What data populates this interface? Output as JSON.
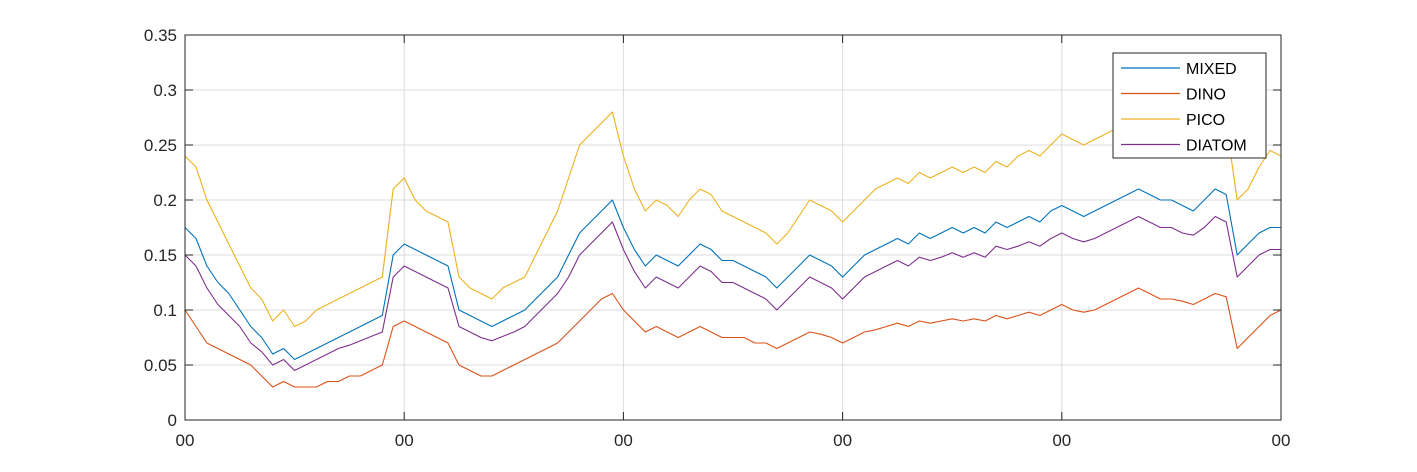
{
  "chart_data": {
    "type": "line",
    "title": "",
    "xlabel": "",
    "ylabel": "",
    "ylim": [
      0,
      0.35
    ],
    "xlim": [
      0,
      100
    ],
    "yticks": [
      0,
      0.05,
      0.1,
      0.15,
      0.2,
      0.25,
      0.3,
      0.35
    ],
    "ytick_labels": [
      "0",
      "0.05",
      "0.1",
      "0.15",
      "0.2",
      "0.25",
      "0.3",
      "0.35"
    ],
    "xticks": [
      0,
      20,
      40,
      60,
      80,
      100
    ],
    "xtick_labels": [
      "00",
      "00",
      "00",
      "00",
      "00",
      "00"
    ],
    "grid": true,
    "legend_position": "top-right",
    "series": [
      {
        "name": "MIXED",
        "color": "#0072BD",
        "x": [
          0,
          1,
          2,
          3,
          4,
          5,
          6,
          7,
          8,
          9,
          10,
          11,
          12,
          13,
          14,
          15,
          16,
          17,
          18,
          19,
          20,
          21,
          22,
          23,
          24,
          25,
          26,
          27,
          28,
          29,
          30,
          31,
          32,
          33,
          34,
          35,
          36,
          37,
          38,
          39,
          40,
          41,
          42,
          43,
          44,
          45,
          46,
          47,
          48,
          49,
          50,
          51,
          52,
          53,
          54,
          55,
          56,
          57,
          58,
          59,
          60,
          61,
          62,
          63,
          64,
          65,
          66,
          67,
          68,
          69,
          70,
          71,
          72,
          73,
          74,
          75,
          76,
          77,
          78,
          79,
          80,
          81,
          82,
          83,
          84,
          85,
          86,
          87,
          88,
          89,
          90,
          91,
          92,
          93,
          94,
          95,
          96,
          97,
          98,
          99,
          100
        ],
        "values": [
          0.175,
          0.165,
          0.14,
          0.125,
          0.115,
          0.1,
          0.085,
          0.075,
          0.06,
          0.065,
          0.055,
          0.06,
          0.065,
          0.07,
          0.075,
          0.08,
          0.085,
          0.09,
          0.095,
          0.15,
          0.16,
          0.155,
          0.15,
          0.145,
          0.14,
          0.1,
          0.095,
          0.09,
          0.085,
          0.09,
          0.095,
          0.1,
          0.11,
          0.12,
          0.13,
          0.15,
          0.17,
          0.18,
          0.19,
          0.2,
          0.175,
          0.155,
          0.14,
          0.15,
          0.145,
          0.14,
          0.15,
          0.16,
          0.155,
          0.145,
          0.145,
          0.14,
          0.135,
          0.13,
          0.12,
          0.13,
          0.14,
          0.15,
          0.145,
          0.14,
          0.13,
          0.14,
          0.15,
          0.155,
          0.16,
          0.165,
          0.16,
          0.17,
          0.165,
          0.17,
          0.175,
          0.17,
          0.175,
          0.17,
          0.18,
          0.175,
          0.18,
          0.185,
          0.18,
          0.19,
          0.195,
          0.19,
          0.185,
          0.19,
          0.195,
          0.2,
          0.205,
          0.21,
          0.205,
          0.2,
          0.2,
          0.195,
          0.19,
          0.2,
          0.21,
          0.205,
          0.15,
          0.16,
          0.17,
          0.175,
          0.175
        ]
      },
      {
        "name": "DINO",
        "color": "#D95319",
        "x": [
          0,
          1,
          2,
          3,
          4,
          5,
          6,
          7,
          8,
          9,
          10,
          11,
          12,
          13,
          14,
          15,
          16,
          17,
          18,
          19,
          20,
          21,
          22,
          23,
          24,
          25,
          26,
          27,
          28,
          29,
          30,
          31,
          32,
          33,
          34,
          35,
          36,
          37,
          38,
          39,
          40,
          41,
          42,
          43,
          44,
          45,
          46,
          47,
          48,
          49,
          50,
          51,
          52,
          53,
          54,
          55,
          56,
          57,
          58,
          59,
          60,
          61,
          62,
          63,
          64,
          65,
          66,
          67,
          68,
          69,
          70,
          71,
          72,
          73,
          74,
          75,
          76,
          77,
          78,
          79,
          80,
          81,
          82,
          83,
          84,
          85,
          86,
          87,
          88,
          89,
          90,
          91,
          92,
          93,
          94,
          95,
          96,
          97,
          98,
          99,
          100
        ],
        "values": [
          0.1,
          0.085,
          0.07,
          0.065,
          0.06,
          0.055,
          0.05,
          0.04,
          0.03,
          0.035,
          0.03,
          0.03,
          0.03,
          0.035,
          0.035,
          0.04,
          0.04,
          0.045,
          0.05,
          0.085,
          0.09,
          0.085,
          0.08,
          0.075,
          0.07,
          0.05,
          0.045,
          0.04,
          0.04,
          0.045,
          0.05,
          0.055,
          0.06,
          0.065,
          0.07,
          0.08,
          0.09,
          0.1,
          0.11,
          0.115,
          0.1,
          0.09,
          0.08,
          0.085,
          0.08,
          0.075,
          0.08,
          0.085,
          0.08,
          0.075,
          0.075,
          0.075,
          0.07,
          0.07,
          0.065,
          0.07,
          0.075,
          0.08,
          0.078,
          0.075,
          0.07,
          0.075,
          0.08,
          0.082,
          0.085,
          0.088,
          0.085,
          0.09,
          0.088,
          0.09,
          0.092,
          0.09,
          0.092,
          0.09,
          0.095,
          0.092,
          0.095,
          0.098,
          0.095,
          0.1,
          0.105,
          0.1,
          0.098,
          0.1,
          0.105,
          0.11,
          0.115,
          0.12,
          0.115,
          0.11,
          0.11,
          0.108,
          0.105,
          0.11,
          0.115,
          0.112,
          0.065,
          0.075,
          0.085,
          0.095,
          0.1
        ]
      },
      {
        "name": "PICO",
        "color": "#EDB120",
        "x": [
          0,
          1,
          2,
          3,
          4,
          5,
          6,
          7,
          8,
          9,
          10,
          11,
          12,
          13,
          14,
          15,
          16,
          17,
          18,
          19,
          20,
          21,
          22,
          23,
          24,
          25,
          26,
          27,
          28,
          29,
          30,
          31,
          32,
          33,
          34,
          35,
          36,
          37,
          38,
          39,
          40,
          41,
          42,
          43,
          44,
          45,
          46,
          47,
          48,
          49,
          50,
          51,
          52,
          53,
          54,
          55,
          56,
          57,
          58,
          59,
          60,
          61,
          62,
          63,
          64,
          65,
          66,
          67,
          68,
          69,
          70,
          71,
          72,
          73,
          74,
          75,
          76,
          77,
          78,
          79,
          80,
          81,
          82,
          83,
          84,
          85,
          86,
          87,
          88,
          89,
          90,
          91,
          92,
          93,
          94,
          95,
          96,
          97,
          98,
          99,
          100
        ],
        "values": [
          0.24,
          0.23,
          0.2,
          0.18,
          0.16,
          0.14,
          0.12,
          0.11,
          0.09,
          0.1,
          0.085,
          0.09,
          0.1,
          0.105,
          0.11,
          0.115,
          0.12,
          0.125,
          0.13,
          0.21,
          0.22,
          0.2,
          0.19,
          0.185,
          0.18,
          0.13,
          0.12,
          0.115,
          0.11,
          0.12,
          0.125,
          0.13,
          0.15,
          0.17,
          0.19,
          0.22,
          0.25,
          0.26,
          0.27,
          0.28,
          0.24,
          0.21,
          0.19,
          0.2,
          0.195,
          0.185,
          0.2,
          0.21,
          0.205,
          0.19,
          0.185,
          0.18,
          0.175,
          0.17,
          0.16,
          0.17,
          0.185,
          0.2,
          0.195,
          0.19,
          0.18,
          0.19,
          0.2,
          0.21,
          0.215,
          0.22,
          0.215,
          0.225,
          0.22,
          0.225,
          0.23,
          0.225,
          0.23,
          0.225,
          0.235,
          0.23,
          0.24,
          0.245,
          0.24,
          0.25,
          0.26,
          0.255,
          0.25,
          0.255,
          0.26,
          0.265,
          0.27,
          0.28,
          0.275,
          0.265,
          0.265,
          0.26,
          0.255,
          0.265,
          0.28,
          0.27,
          0.2,
          0.21,
          0.23,
          0.245,
          0.24
        ]
      },
      {
        "name": "DIATOM",
        "color": "#7E2F8E",
        "x": [
          0,
          1,
          2,
          3,
          4,
          5,
          6,
          7,
          8,
          9,
          10,
          11,
          12,
          13,
          14,
          15,
          16,
          17,
          18,
          19,
          20,
          21,
          22,
          23,
          24,
          25,
          26,
          27,
          28,
          29,
          30,
          31,
          32,
          33,
          34,
          35,
          36,
          37,
          38,
          39,
          40,
          41,
          42,
          43,
          44,
          45,
          46,
          47,
          48,
          49,
          50,
          51,
          52,
          53,
          54,
          55,
          56,
          57,
          58,
          59,
          60,
          61,
          62,
          63,
          64,
          65,
          66,
          67,
          68,
          69,
          70,
          71,
          72,
          73,
          74,
          75,
          76,
          77,
          78,
          79,
          80,
          81,
          82,
          83,
          84,
          85,
          86,
          87,
          88,
          89,
          90,
          91,
          92,
          93,
          94,
          95,
          96,
          97,
          98,
          99,
          100
        ],
        "values": [
          0.15,
          0.14,
          0.12,
          0.105,
          0.095,
          0.085,
          0.07,
          0.062,
          0.05,
          0.055,
          0.045,
          0.05,
          0.055,
          0.06,
          0.065,
          0.068,
          0.072,
          0.076,
          0.08,
          0.13,
          0.14,
          0.135,
          0.13,
          0.125,
          0.12,
          0.085,
          0.08,
          0.075,
          0.072,
          0.076,
          0.08,
          0.085,
          0.095,
          0.105,
          0.115,
          0.13,
          0.15,
          0.16,
          0.17,
          0.18,
          0.155,
          0.135,
          0.12,
          0.13,
          0.125,
          0.12,
          0.13,
          0.14,
          0.135,
          0.125,
          0.125,
          0.12,
          0.115,
          0.11,
          0.1,
          0.11,
          0.12,
          0.13,
          0.125,
          0.12,
          0.11,
          0.12,
          0.13,
          0.135,
          0.14,
          0.145,
          0.14,
          0.148,
          0.145,
          0.148,
          0.152,
          0.148,
          0.152,
          0.148,
          0.158,
          0.155,
          0.158,
          0.162,
          0.158,
          0.165,
          0.17,
          0.165,
          0.162,
          0.165,
          0.17,
          0.175,
          0.18,
          0.185,
          0.18,
          0.175,
          0.175,
          0.17,
          0.168,
          0.175,
          0.185,
          0.18,
          0.13,
          0.14,
          0.15,
          0.155,
          0.155
        ]
      }
    ]
  }
}
